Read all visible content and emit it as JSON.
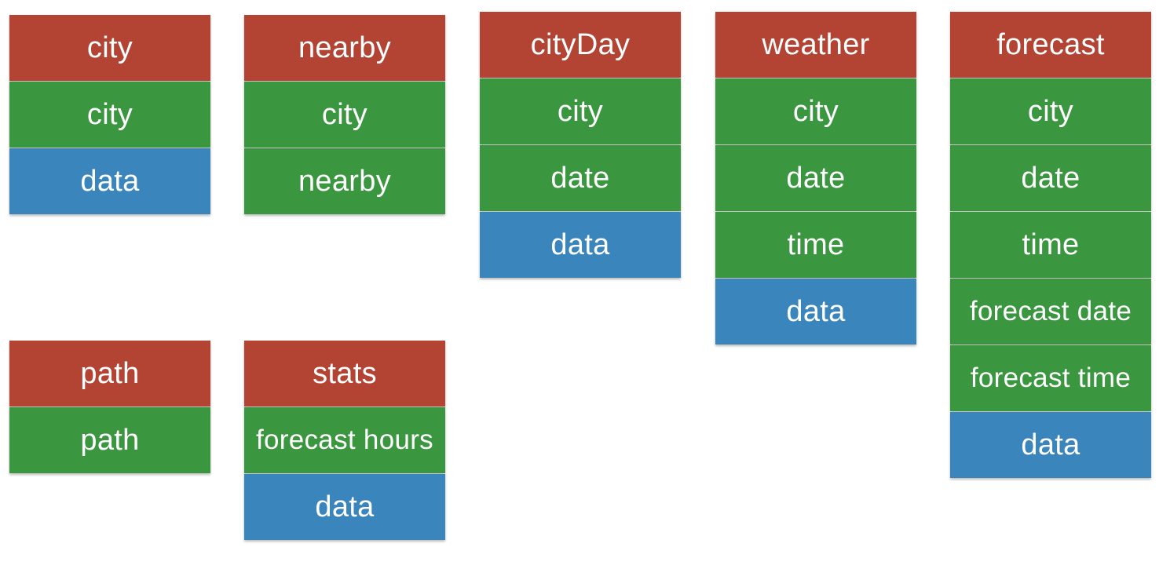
{
  "colors": {
    "header": "#b34434",
    "key": "#3a963f",
    "data": "#3a85bc"
  },
  "tables": {
    "city": {
      "name": "city",
      "fields": [
        "city",
        "data"
      ]
    },
    "nearby": {
      "name": "nearby",
      "fields": [
        "city",
        "nearby"
      ]
    },
    "cityDay": {
      "name": "cityDay",
      "fields": [
        "city",
        "date",
        "data"
      ]
    },
    "weather": {
      "name": "weather",
      "fields": [
        "city",
        "date",
        "time",
        "data"
      ]
    },
    "forecast": {
      "name": "forecast",
      "fields": [
        "city",
        "date",
        "time",
        "forecast date",
        "forecast time",
        "data"
      ]
    },
    "path": {
      "name": "path",
      "fields": [
        "path"
      ]
    },
    "stats": {
      "name": "stats",
      "fields": [
        "forecast hours",
        "data"
      ]
    }
  }
}
